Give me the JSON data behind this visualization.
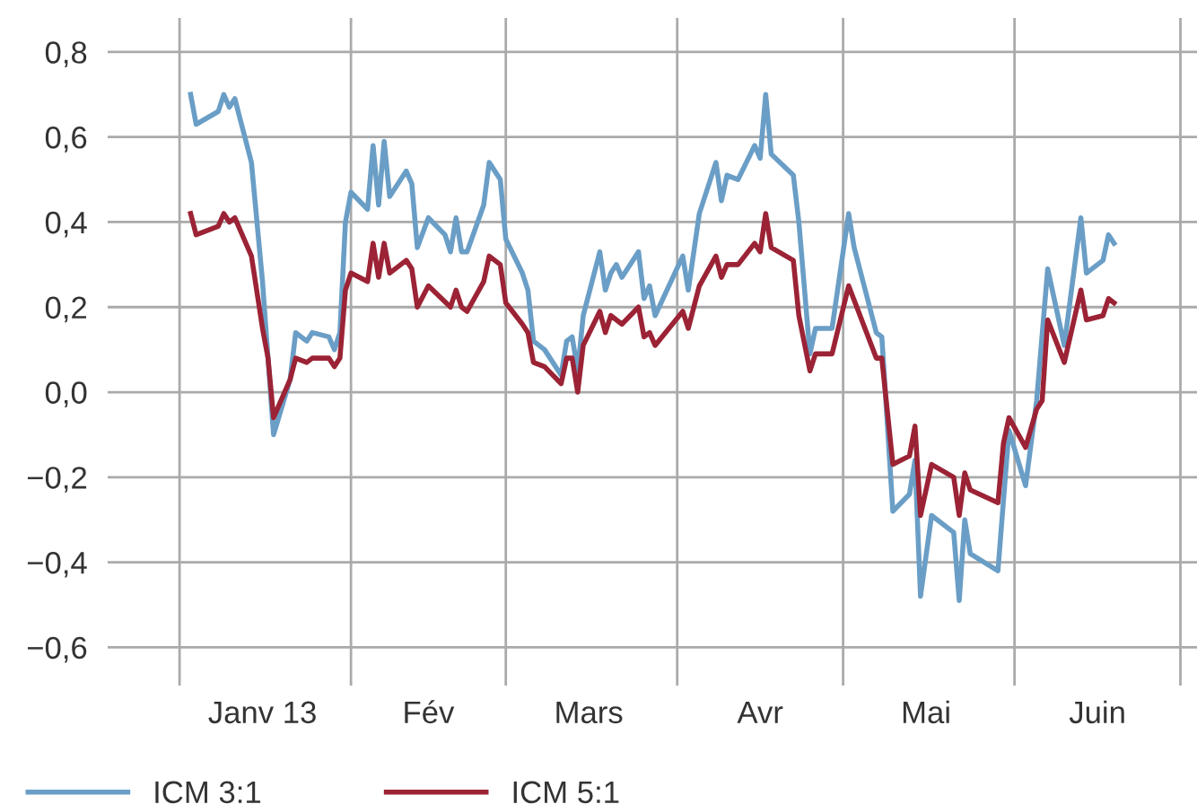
{
  "chart_data": {
    "type": "line",
    "xlim": [
      "2012-12-19",
      "2013-07-04"
    ],
    "ylim": [
      -0.69,
      0.88
    ],
    "yticks": [
      {
        "value": -0.6,
        "label": "−0,6"
      },
      {
        "value": -0.4,
        "label": "−0,4"
      },
      {
        "value": -0.2,
        "label": "−0,2"
      },
      {
        "value": 0.0,
        "label": "0,0"
      },
      {
        "value": 0.2,
        "label": "0,2"
      },
      {
        "value": 0.4,
        "label": "0,4"
      },
      {
        "value": 0.6,
        "label": "0,6"
      },
      {
        "value": 0.8,
        "label": "0,8"
      }
    ],
    "xticks": [
      {
        "value": "2013-01-01",
        "label": null
      },
      {
        "value": "2013-01-16",
        "label": "Janv 13"
      },
      {
        "value": "2013-02-01",
        "label": null
      },
      {
        "value": "2013-02-15",
        "label": "Fév"
      },
      {
        "value": "2013-03-01",
        "label": null
      },
      {
        "value": "2013-03-16",
        "label": "Mars"
      },
      {
        "value": "2013-04-01",
        "label": null
      },
      {
        "value": "2013-04-16",
        "label": "Avr"
      },
      {
        "value": "2013-05-01",
        "label": null
      },
      {
        "value": "2013-05-16",
        "label": "Mai"
      },
      {
        "value": "2013-06-01",
        "label": null
      },
      {
        "value": "2013-06-16",
        "label": "Juin"
      },
      {
        "value": "2013-07-01",
        "label": null
      }
    ],
    "grid": true,
    "legend": "bottom",
    "marker": "none",
    "line_style": "solid",
    "series": [
      {
        "name": "ICM 3:1",
        "color": "#6a9ec6",
        "x": [
          "2013-01-03",
          "2013-01-04",
          "2013-01-08",
          "2013-01-09",
          "2013-01-10",
          "2013-01-11",
          "2013-01-14",
          "2013-01-16",
          "2013-01-18",
          "2013-01-21",
          "2013-01-22",
          "2013-01-24",
          "2013-01-25",
          "2013-01-28",
          "2013-01-29",
          "2013-01-30",
          "2013-01-31",
          "2013-02-01",
          "2013-02-04",
          "2013-02-05",
          "2013-02-06",
          "2013-02-07",
          "2013-02-08",
          "2013-02-11",
          "2013-02-12",
          "2013-02-13",
          "2013-02-15",
          "2013-02-18",
          "2013-02-19",
          "2013-02-20",
          "2013-02-21",
          "2013-02-22",
          "2013-02-25",
          "2013-02-26",
          "2013-02-28",
          "2013-03-01",
          "2013-03-04",
          "2013-03-05",
          "2013-03-06",
          "2013-03-08",
          "2013-03-11",
          "2013-03-12",
          "2013-03-13",
          "2013-03-14",
          "2013-03-15",
          "2013-03-18",
          "2013-03-19",
          "2013-03-20",
          "2013-03-21",
          "2013-03-22",
          "2013-03-25",
          "2013-03-26",
          "2013-03-27",
          "2013-03-28",
          "2013-04-02",
          "2013-04-03",
          "2013-04-05",
          "2013-04-08",
          "2013-04-09",
          "2013-04-10",
          "2013-04-12",
          "2013-04-15",
          "2013-04-16",
          "2013-04-17",
          "2013-04-18",
          "2013-04-22",
          "2013-04-23",
          "2013-04-25",
          "2013-04-26",
          "2013-04-29",
          "2013-05-02",
          "2013-05-03",
          "2013-05-07",
          "2013-05-08",
          "2013-05-10",
          "2013-05-13",
          "2013-05-14",
          "2013-05-15",
          "2013-05-17",
          "2013-05-21",
          "2013-05-22",
          "2013-05-23",
          "2013-05-24",
          "2013-05-29",
          "2013-05-31",
          "2013-06-03",
          "2013-06-05",
          "2013-06-07",
          "2013-06-10",
          "2013-06-13",
          "2013-06-14",
          "2013-06-17",
          "2013-06-18",
          "2013-06-19"
        ],
        "values": [
          0.7,
          0.63,
          0.66,
          0.7,
          0.67,
          0.69,
          0.54,
          0.26,
          -0.1,
          0.03,
          0.14,
          0.12,
          0.14,
          0.13,
          0.1,
          0.14,
          0.4,
          0.47,
          0.43,
          0.58,
          0.44,
          0.59,
          0.46,
          0.52,
          0.49,
          0.34,
          0.41,
          0.37,
          0.33,
          0.41,
          0.33,
          0.33,
          0.44,
          0.54,
          0.5,
          0.36,
          0.28,
          0.24,
          0.12,
          0.1,
          0.04,
          0.12,
          0.13,
          0.05,
          0.18,
          0.33,
          0.24,
          0.28,
          0.3,
          0.27,
          0.33,
          0.22,
          0.25,
          0.18,
          0.32,
          0.24,
          0.42,
          0.54,
          0.45,
          0.51,
          0.5,
          0.58,
          0.55,
          0.7,
          0.56,
          0.51,
          0.4,
          0.09,
          0.15,
          0.15,
          0.42,
          0.34,
          0.14,
          0.13,
          -0.28,
          -0.24,
          -0.16,
          -0.48,
          -0.29,
          -0.33,
          -0.49,
          -0.3,
          -0.38,
          -0.42,
          -0.09,
          -0.22,
          -0.02,
          0.29,
          0.11,
          0.41,
          0.28,
          0.31,
          0.37,
          0.35
        ]
      },
      {
        "name": "ICM 5:1",
        "color": "#9b2335",
        "x": [
          "2013-01-03",
          "2013-01-04",
          "2013-01-08",
          "2013-01-09",
          "2013-01-10",
          "2013-01-11",
          "2013-01-14",
          "2013-01-16",
          "2013-01-17",
          "2013-01-18",
          "2013-01-21",
          "2013-01-22",
          "2013-01-24",
          "2013-01-25",
          "2013-01-28",
          "2013-01-29",
          "2013-01-30",
          "2013-01-31",
          "2013-02-01",
          "2013-02-04",
          "2013-02-05",
          "2013-02-06",
          "2013-02-07",
          "2013-02-08",
          "2013-02-11",
          "2013-02-12",
          "2013-02-13",
          "2013-02-15",
          "2013-02-19",
          "2013-02-20",
          "2013-02-21",
          "2013-02-22",
          "2013-02-25",
          "2013-02-26",
          "2013-02-28",
          "2013-03-01",
          "2013-03-04",
          "2013-03-05",
          "2013-03-06",
          "2013-03-08",
          "2013-03-11",
          "2013-03-12",
          "2013-03-13",
          "2013-03-14",
          "2013-03-15",
          "2013-03-18",
          "2013-03-19",
          "2013-03-20",
          "2013-03-22",
          "2013-03-25",
          "2013-03-26",
          "2013-03-27",
          "2013-03-28",
          "2013-04-02",
          "2013-04-03",
          "2013-04-05",
          "2013-04-08",
          "2013-04-09",
          "2013-04-10",
          "2013-04-12",
          "2013-04-15",
          "2013-04-16",
          "2013-04-17",
          "2013-04-18",
          "2013-04-22",
          "2013-04-23",
          "2013-04-25",
          "2013-04-26",
          "2013-04-29",
          "2013-05-02",
          "2013-05-07",
          "2013-05-08",
          "2013-05-10",
          "2013-05-13",
          "2013-05-14",
          "2013-05-15",
          "2013-05-17",
          "2013-05-21",
          "2013-05-22",
          "2013-05-23",
          "2013-05-24",
          "2013-05-29",
          "2013-05-30",
          "2013-05-31",
          "2013-06-03",
          "2013-06-05",
          "2013-06-06",
          "2013-06-07",
          "2013-06-10",
          "2013-06-13",
          "2013-06-14",
          "2013-06-17",
          "2013-06-18",
          "2013-06-19"
        ],
        "values": [
          0.42,
          0.37,
          0.39,
          0.42,
          0.4,
          0.41,
          0.32,
          0.15,
          0.08,
          -0.06,
          0.03,
          0.08,
          0.07,
          0.08,
          0.08,
          0.06,
          0.08,
          0.24,
          0.28,
          0.26,
          0.35,
          0.27,
          0.35,
          0.28,
          0.31,
          0.29,
          0.2,
          0.25,
          0.2,
          0.24,
          0.2,
          0.19,
          0.26,
          0.32,
          0.3,
          0.21,
          0.16,
          0.14,
          0.07,
          0.06,
          0.02,
          0.08,
          0.08,
          0.0,
          0.11,
          0.19,
          0.14,
          0.18,
          0.16,
          0.2,
          0.13,
          0.14,
          0.11,
          0.19,
          0.15,
          0.25,
          0.32,
          0.27,
          0.3,
          0.3,
          0.35,
          0.33,
          0.42,
          0.34,
          0.31,
          0.18,
          0.05,
          0.09,
          0.09,
          0.25,
          0.08,
          0.08,
          -0.17,
          -0.15,
          -0.08,
          -0.29,
          -0.17,
          -0.2,
          -0.29,
          -0.19,
          -0.23,
          -0.26,
          -0.12,
          -0.06,
          -0.13,
          -0.04,
          -0.02,
          0.17,
          0.07,
          0.24,
          0.17,
          0.18,
          0.22,
          0.21
        ]
      }
    ]
  }
}
